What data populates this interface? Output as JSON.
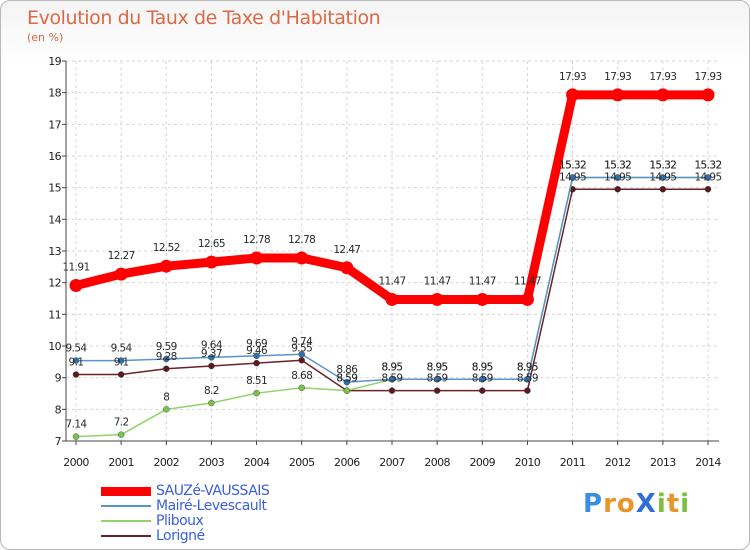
{
  "title": "Evolution du Taux de Taxe d'Habitation",
  "unit_label": "(en %)",
  "brand": {
    "text": "ProXiti",
    "letters": [
      "P",
      "r",
      "o",
      "X",
      "i",
      "t",
      "i"
    ],
    "colors": [
      "#3a8de0",
      "#e8962c",
      "#e8962c",
      "#2f6fd6",
      "#7dbe3c",
      "#e8962c",
      "#7dbe3c"
    ]
  },
  "chart_data": {
    "type": "line",
    "title": "Evolution du Taux de Taxe d'Habitation",
    "ylabel": "(en %)",
    "xlabel": "",
    "x": [
      "2000",
      "2001",
      "2002",
      "2003",
      "2004",
      "2005",
      "2006",
      "2007",
      "2008",
      "2009",
      "2010",
      "2011",
      "2012",
      "2013",
      "2014"
    ],
    "ylim": [
      7,
      19
    ],
    "yticks": [
      7,
      8,
      9,
      10,
      11,
      12,
      13,
      14,
      15,
      16,
      17,
      18,
      19
    ],
    "grid": true,
    "legend_position": "bottom-left",
    "series": [
      {
        "name": "SAUZé-VAUSSAIS",
        "color": "#ff0000",
        "marker": "#ff0000",
        "width": 9,
        "values": [
          11.91,
          12.27,
          12.52,
          12.65,
          12.78,
          12.78,
          12.47,
          11.47,
          11.47,
          11.47,
          11.47,
          17.93,
          17.93,
          17.93,
          17.93
        ],
        "labels": [
          "11.91",
          "12.27",
          "12.52",
          "12.65",
          "12.78",
          "12.78",
          "12.47",
          "11.47",
          "11.47",
          "11.47",
          "11.47",
          "17.93",
          "17.93",
          "17.93",
          "17.93"
        ]
      },
      {
        "name": "Mairé-Levescault",
        "color": "#5b93c8",
        "marker": "#2f6fb0",
        "width": 1.5,
        "values": [
          9.54,
          9.54,
          9.59,
          9.64,
          9.69,
          9.74,
          8.86,
          8.95,
          8.95,
          8.95,
          8.95,
          15.32,
          15.32,
          15.32,
          15.32
        ],
        "labels": [
          "9.54",
          "9.54",
          "9.59",
          "9.64",
          "9.69",
          "9.74",
          "8.86",
          "8.95",
          "8.95",
          "8.95",
          "8.95",
          "15.32",
          "15.32",
          "15.32",
          "15.32"
        ]
      },
      {
        "name": "Pliboux",
        "color": "#8fd36a",
        "marker": "#7ac24e",
        "width": 1.5,
        "values": [
          7.14,
          7.2,
          8,
          8.2,
          8.51,
          8.68,
          8.59,
          8.95,
          8.95,
          8.95,
          8.95,
          15.32,
          15.32,
          15.32,
          15.32
        ],
        "labels": [
          "7.14",
          "7.2",
          "8",
          "8.2",
          "8.51",
          "8.68",
          "8.59",
          "8.95",
          "8.95",
          "8.95",
          "8.95",
          "15.32",
          "15.32",
          "15.32",
          "15.32"
        ]
      },
      {
        "name": "Lorigné",
        "color": "#6b2228",
        "marker": "#5a1a1f",
        "width": 1.5,
        "values": [
          9.1,
          9.1,
          9.28,
          9.37,
          9.46,
          9.55,
          8.59,
          8.59,
          8.59,
          8.59,
          8.59,
          14.95,
          14.95,
          14.95,
          14.95
        ],
        "labels": [
          "9.1",
          "9.1",
          "9.28",
          "9.37",
          "9.46",
          "9.55",
          "8.59",
          "8.59",
          "8.59",
          "8.59",
          "8.59",
          "14.95",
          "14.95",
          "14.95",
          "14.95"
        ]
      }
    ]
  }
}
